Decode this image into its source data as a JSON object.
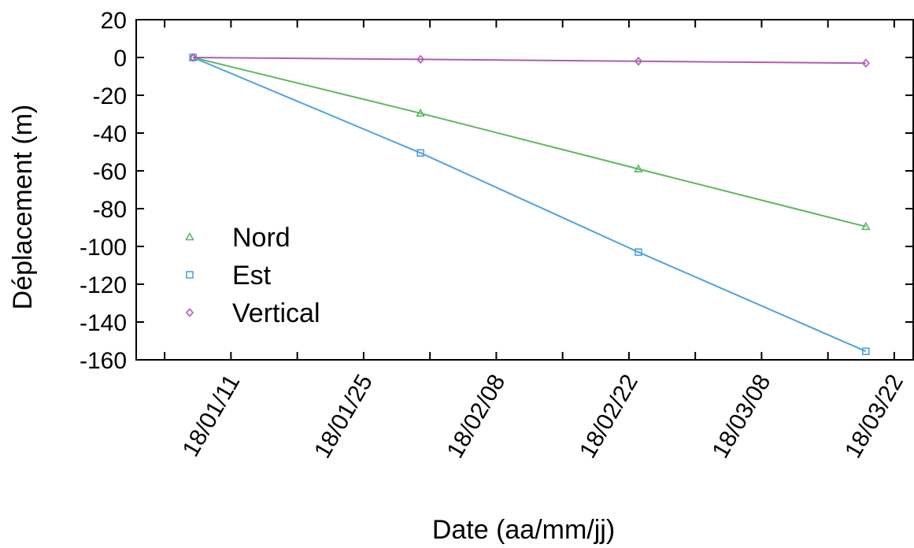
{
  "chart_data": {
    "type": "line",
    "xlabel": "Date (aa/mm/jj)",
    "ylabel": "Déplacement (m)",
    "x_type": "date",
    "xlim": [
      "2018-01-01",
      "2018-03-24"
    ],
    "ylim": [
      -160,
      20
    ],
    "y_ticks": [
      20,
      0,
      -20,
      -40,
      -60,
      -80,
      -100,
      -120,
      -140,
      -160
    ],
    "x_ticks": [
      {
        "date": "2018-01-11",
        "label": "18/01/11"
      },
      {
        "date": "2018-01-25",
        "label": "18/01/25"
      },
      {
        "date": "2018-02-08",
        "label": "18/02/08"
      },
      {
        "date": "2018-02-22",
        "label": "18/02/22"
      },
      {
        "date": "2018-03-08",
        "label": "18/03/08"
      },
      {
        "date": "2018-03-22",
        "label": "18/03/22"
      }
    ],
    "grid": false,
    "legend_position": "bottom-left",
    "series": [
      {
        "name": "Nord",
        "color": "#5cb85c",
        "marker": "triangle",
        "points": [
          [
            "2018-01-07",
            0
          ],
          [
            "2018-01-31",
            -29.5
          ],
          [
            "2018-02-23",
            -59
          ],
          [
            "2018-03-19",
            -89.5
          ]
        ]
      },
      {
        "name": "Est",
        "color": "#4fa3dd",
        "marker": "square",
        "points": [
          [
            "2018-01-07",
            0
          ],
          [
            "2018-01-31",
            -50.5
          ],
          [
            "2018-02-23",
            -103
          ],
          [
            "2018-03-19",
            -155.5
          ]
        ]
      },
      {
        "name": "Vertical",
        "color": "#b05cb5",
        "marker": "diamond",
        "points": [
          [
            "2018-01-07",
            0
          ],
          [
            "2018-01-31",
            -1
          ],
          [
            "2018-02-23",
            -2
          ],
          [
            "2018-03-19",
            -3
          ]
        ]
      }
    ]
  }
}
